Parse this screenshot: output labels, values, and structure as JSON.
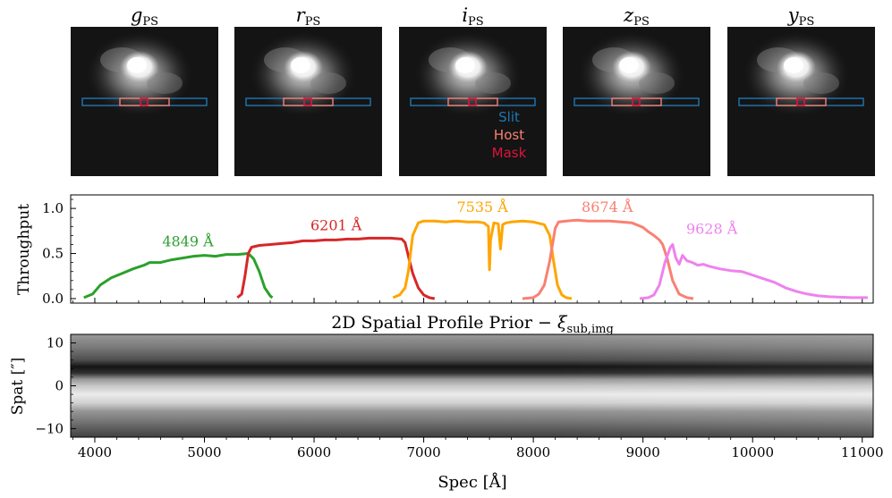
{
  "image_panels": {
    "titles": [
      {
        "base": "g",
        "sub": "PS"
      },
      {
        "base": "r",
        "sub": "PS"
      },
      {
        "base": "i",
        "sub": "PS"
      },
      {
        "base": "z",
        "sub": "PS"
      },
      {
        "base": "y",
        "sub": "PS"
      }
    ],
    "legend": [
      {
        "label": "Slit",
        "color": "#1f77b4"
      },
      {
        "label": "Host",
        "color": "#fa8072"
      },
      {
        "label": "Mask",
        "color": "#dc143c"
      }
    ]
  },
  "chart_data": [
    {
      "type": "line",
      "ylabel": "Throughput",
      "xlim": [
        3780,
        11100
      ],
      "ylim": [
        -0.05,
        1.15
      ],
      "yticks": [
        0.0,
        0.5,
        1.0
      ],
      "ytick_labels": [
        "0.0",
        "0.5",
        "1.0"
      ],
      "series": [
        {
          "name": "4849 Å",
          "color": "#2ca02c",
          "x": [
            3900,
            3980,
            4050,
            4150,
            4250,
            4350,
            4450,
            4500,
            4600,
            4700,
            4800,
            4900,
            5000,
            5100,
            5200,
            5300,
            5400,
            5450,
            5500,
            5550,
            5600,
            5620
          ],
          "y": [
            0.01,
            0.05,
            0.15,
            0.23,
            0.28,
            0.33,
            0.37,
            0.4,
            0.4,
            0.43,
            0.45,
            0.47,
            0.48,
            0.47,
            0.49,
            0.49,
            0.5,
            0.44,
            0.3,
            0.12,
            0.03,
            0.01
          ],
          "label_pos": [
            4849,
            0.58
          ]
        },
        {
          "name": "6201 Å",
          "color": "#d62728",
          "x": [
            5300,
            5340,
            5370,
            5400,
            5430,
            5500,
            5600,
            5700,
            5800,
            5900,
            6000,
            6100,
            6200,
            6300,
            6400,
            6500,
            6600,
            6700,
            6800,
            6830,
            6870,
            6900,
            6950,
            7000,
            7050,
            7100
          ],
          "y": [
            0.01,
            0.05,
            0.25,
            0.5,
            0.57,
            0.59,
            0.6,
            0.61,
            0.62,
            0.64,
            0.64,
            0.65,
            0.65,
            0.66,
            0.66,
            0.67,
            0.67,
            0.67,
            0.66,
            0.62,
            0.42,
            0.28,
            0.12,
            0.04,
            0.01,
            0.0
          ],
          "label_pos": [
            6201,
            0.76
          ]
        },
        {
          "name": "7535 Å",
          "color": "#ffa500",
          "x": [
            6720,
            6780,
            6830,
            6860,
            6900,
            6950,
            7000,
            7100,
            7200,
            7300,
            7400,
            7500,
            7550,
            7590,
            7600,
            7610,
            7640,
            7680,
            7700,
            7720,
            7750,
            7800,
            7900,
            8000,
            8100,
            8150,
            8180,
            8220,
            8260,
            8300,
            8350
          ],
          "y": [
            0.01,
            0.04,
            0.12,
            0.3,
            0.7,
            0.84,
            0.86,
            0.86,
            0.85,
            0.86,
            0.85,
            0.85,
            0.84,
            0.8,
            0.32,
            0.65,
            0.84,
            0.83,
            0.55,
            0.82,
            0.84,
            0.85,
            0.86,
            0.85,
            0.82,
            0.7,
            0.45,
            0.15,
            0.04,
            0.01,
            0.0
          ],
          "label_pos": [
            7535,
            0.96
          ]
        },
        {
          "name": "8674 Å",
          "color": "#fa8072",
          "x": [
            7900,
            8000,
            8050,
            8100,
            8150,
            8200,
            8230,
            8300,
            8400,
            8500,
            8600,
            8700,
            8800,
            8900,
            9000,
            9050,
            9100,
            9150,
            9180,
            9220,
            9270,
            9330,
            9400,
            9460
          ],
          "y": [
            0.0,
            0.01,
            0.05,
            0.15,
            0.42,
            0.78,
            0.85,
            0.86,
            0.87,
            0.86,
            0.86,
            0.86,
            0.85,
            0.84,
            0.79,
            0.74,
            0.7,
            0.65,
            0.6,
            0.45,
            0.2,
            0.05,
            0.01,
            0.0
          ],
          "label_pos": [
            8674,
            0.96
          ]
        },
        {
          "name": "9628 Å",
          "color": "#ee82ee",
          "x": [
            8970,
            9050,
            9100,
            9150,
            9200,
            9250,
            9270,
            9300,
            9330,
            9360,
            9400,
            9450,
            9500,
            9550,
            9600,
            9700,
            9800,
            9900,
            10000,
            10100,
            10200,
            10300,
            10400,
            10500,
            10600,
            10700,
            10800,
            10900,
            11000,
            11050
          ],
          "y": [
            0.0,
            0.01,
            0.04,
            0.15,
            0.4,
            0.57,
            0.6,
            0.45,
            0.38,
            0.48,
            0.42,
            0.4,
            0.37,
            0.38,
            0.36,
            0.33,
            0.31,
            0.3,
            0.26,
            0.22,
            0.18,
            0.12,
            0.08,
            0.05,
            0.03,
            0.02,
            0.015,
            0.01,
            0.01,
            0.01
          ],
          "label_pos": [
            9628,
            0.72
          ]
        }
      ]
    },
    {
      "type": "heatmap",
      "title": {
        "main": "2D Spatial Profile Prior − ",
        "symbol": "ξ",
        "sub": "sub,img"
      },
      "xlabel": "Spec [Å]",
      "ylabel": "Spat [″]",
      "xlim": [
        3780,
        11100
      ],
      "ylim": [
        -12,
        12
      ],
      "xticks": [
        4000,
        5000,
        6000,
        7000,
        8000,
        9000,
        10000,
        11000
      ],
      "yticks": [
        10,
        0,
        -10
      ],
      "ytick_labels": [
        "10",
        "0",
        "−10"
      ],
      "profile": [
        {
          "spat": 12,
          "brightness": 0.6
        },
        {
          "spat": 9,
          "brightness": 0.48
        },
        {
          "spat": 6,
          "brightness": 0.3
        },
        {
          "spat": 4.5,
          "brightness": 0.08
        },
        {
          "spat": 3,
          "brightness": 0.18
        },
        {
          "spat": 1.5,
          "brightness": 0.6
        },
        {
          "spat": 0,
          "brightness": 0.78
        },
        {
          "spat": -2,
          "brightness": 0.92
        },
        {
          "spat": -4,
          "brightness": 0.82
        },
        {
          "spat": -6,
          "brightness": 0.58
        },
        {
          "spat": -8,
          "brightness": 0.48
        },
        {
          "spat": -10,
          "brightness": 0.36
        },
        {
          "spat": -12,
          "brightness": 0.25
        }
      ]
    }
  ]
}
